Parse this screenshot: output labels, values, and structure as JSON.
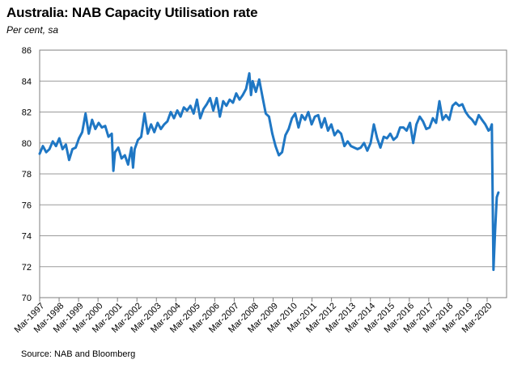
{
  "title": "Australia: NAB Capacity Utilisation rate",
  "subtitle": "Per cent, sa",
  "source": "Source: NAB and Bloomberg",
  "colors": {
    "line": "#1f77c4",
    "grid": "#9a9a9a",
    "axis": "#7f7f7f"
  },
  "chart_data": {
    "type": "line",
    "title": "Australia: NAB Capacity Utilisation rate",
    "ylabel": "Per cent, sa",
    "xlabel": "",
    "ylim": [
      70,
      86
    ],
    "yticks": [
      70,
      72,
      74,
      76,
      78,
      80,
      82,
      84,
      86
    ],
    "xlim": [
      "1997-03",
      "2020-12"
    ],
    "xtick_labels": [
      "Mar-1997",
      "Mar-1998",
      "Mar-1999",
      "Mar-2000",
      "Mar-2001",
      "Mar-2002",
      "Mar-2003",
      "Mar-2004",
      "Mar-2005",
      "Mar-2006",
      "Mar-2007",
      "Mar-2008",
      "Mar-2009",
      "Mar-2010",
      "Mar-2011",
      "Mar-2012",
      "Mar-2013",
      "Mar-2014",
      "Mar-2015",
      "Mar-2016",
      "Mar-2017",
      "Mar-2018",
      "Mar-2019",
      "Mar-2020"
    ],
    "grid": true,
    "legend": "none",
    "series": [
      {
        "points": [
          [
            "1997-03",
            79.3
          ],
          [
            "1997-05",
            79.8
          ],
          [
            "1997-07",
            79.4
          ],
          [
            "1997-09",
            79.6
          ],
          [
            "1997-11",
            80.1
          ],
          [
            "1998-01",
            79.8
          ],
          [
            "1998-03",
            80.3
          ],
          [
            "1998-05",
            79.6
          ],
          [
            "1998-07",
            79.9
          ],
          [
            "1998-09",
            78.9
          ],
          [
            "1998-11",
            79.6
          ],
          [
            "1999-01",
            79.7
          ],
          [
            "1999-03",
            80.3
          ],
          [
            "1999-05",
            80.7
          ],
          [
            "1999-07",
            81.9
          ],
          [
            "1999-09",
            80.6
          ],
          [
            "1999-11",
            81.5
          ],
          [
            "2000-01",
            80.9
          ],
          [
            "2000-03",
            81.3
          ],
          [
            "2000-05",
            81.0
          ],
          [
            "2000-07",
            81.1
          ],
          [
            "2000-09",
            80.4
          ],
          [
            "2000-11",
            80.6
          ],
          [
            "2000-12",
            78.2
          ],
          [
            "2001-01",
            79.4
          ],
          [
            "2001-03",
            79.7
          ],
          [
            "2001-05",
            79.0
          ],
          [
            "2001-07",
            79.2
          ],
          [
            "2001-09",
            78.6
          ],
          [
            "2001-11",
            79.7
          ],
          [
            "2001-12",
            78.4
          ],
          [
            "2002-01",
            79.6
          ],
          [
            "2002-03",
            80.2
          ],
          [
            "2002-05",
            80.4
          ],
          [
            "2002-07",
            81.9
          ],
          [
            "2002-09",
            80.6
          ],
          [
            "2002-11",
            81.2
          ],
          [
            "2003-01",
            80.7
          ],
          [
            "2003-03",
            81.3
          ],
          [
            "2003-05",
            80.9
          ],
          [
            "2003-07",
            81.2
          ],
          [
            "2003-09",
            81.4
          ],
          [
            "2003-11",
            82.0
          ],
          [
            "2004-01",
            81.6
          ],
          [
            "2004-03",
            82.1
          ],
          [
            "2004-05",
            81.7
          ],
          [
            "2004-07",
            82.3
          ],
          [
            "2004-09",
            82.1
          ],
          [
            "2004-11",
            82.4
          ],
          [
            "2005-01",
            81.9
          ],
          [
            "2005-03",
            82.8
          ],
          [
            "2005-05",
            81.6
          ],
          [
            "2005-07",
            82.2
          ],
          [
            "2005-09",
            82.5
          ],
          [
            "2005-11",
            82.9
          ],
          [
            "2006-01",
            82.1
          ],
          [
            "2006-03",
            82.9
          ],
          [
            "2006-05",
            81.7
          ],
          [
            "2006-07",
            82.7
          ],
          [
            "2006-09",
            82.4
          ],
          [
            "2006-11",
            82.8
          ],
          [
            "2007-01",
            82.6
          ],
          [
            "2007-03",
            83.2
          ],
          [
            "2007-05",
            82.8
          ],
          [
            "2007-07",
            83.1
          ],
          [
            "2007-09",
            83.5
          ],
          [
            "2007-11",
            84.5
          ],
          [
            "2007-12",
            83.1
          ],
          [
            "2008-01",
            84.0
          ],
          [
            "2008-03",
            83.3
          ],
          [
            "2008-05",
            84.1
          ],
          [
            "2008-07",
            83.0
          ],
          [
            "2008-09",
            81.9
          ],
          [
            "2008-11",
            81.7
          ],
          [
            "2009-01",
            80.6
          ],
          [
            "2009-03",
            79.8
          ],
          [
            "2009-05",
            79.2
          ],
          [
            "2009-07",
            79.4
          ],
          [
            "2009-09",
            80.5
          ],
          [
            "2009-11",
            80.9
          ],
          [
            "2010-01",
            81.6
          ],
          [
            "2010-03",
            81.9
          ],
          [
            "2010-05",
            81.0
          ],
          [
            "2010-07",
            81.8
          ],
          [
            "2010-09",
            81.5
          ],
          [
            "2010-11",
            82.0
          ],
          [
            "2011-01",
            81.2
          ],
          [
            "2011-03",
            81.7
          ],
          [
            "2011-05",
            81.8
          ],
          [
            "2011-07",
            81.0
          ],
          [
            "2011-09",
            81.6
          ],
          [
            "2011-11",
            80.8
          ],
          [
            "2012-01",
            81.2
          ],
          [
            "2012-03",
            80.5
          ],
          [
            "2012-05",
            80.8
          ],
          [
            "2012-07",
            80.6
          ],
          [
            "2012-09",
            79.8
          ],
          [
            "2012-11",
            80.1
          ],
          [
            "2013-01",
            79.8
          ],
          [
            "2013-03",
            79.7
          ],
          [
            "2013-05",
            79.6
          ],
          [
            "2013-07",
            79.7
          ],
          [
            "2013-09",
            80.0
          ],
          [
            "2013-11",
            79.5
          ],
          [
            "2014-01",
            80.0
          ],
          [
            "2014-03",
            81.2
          ],
          [
            "2014-05",
            80.3
          ],
          [
            "2014-07",
            79.7
          ],
          [
            "2014-09",
            80.4
          ],
          [
            "2014-11",
            80.3
          ],
          [
            "2015-01",
            80.6
          ],
          [
            "2015-03",
            80.2
          ],
          [
            "2015-05",
            80.4
          ],
          [
            "2015-07",
            81.0
          ],
          [
            "2015-09",
            81.0
          ],
          [
            "2015-11",
            80.8
          ],
          [
            "2016-01",
            81.3
          ],
          [
            "2016-03",
            80.0
          ],
          [
            "2016-05",
            81.2
          ],
          [
            "2016-07",
            81.7
          ],
          [
            "2016-09",
            81.4
          ],
          [
            "2016-11",
            80.9
          ],
          [
            "2017-01",
            81.0
          ],
          [
            "2017-03",
            81.6
          ],
          [
            "2017-05",
            81.3
          ],
          [
            "2017-07",
            82.7
          ],
          [
            "2017-09",
            81.5
          ],
          [
            "2017-11",
            81.8
          ],
          [
            "2018-01",
            81.5
          ],
          [
            "2018-03",
            82.4
          ],
          [
            "2018-05",
            82.6
          ],
          [
            "2018-07",
            82.4
          ],
          [
            "2018-09",
            82.5
          ],
          [
            "2018-11",
            82.0
          ],
          [
            "2019-01",
            81.7
          ],
          [
            "2019-03",
            81.5
          ],
          [
            "2019-05",
            81.2
          ],
          [
            "2019-07",
            81.8
          ],
          [
            "2019-09",
            81.5
          ],
          [
            "2019-11",
            81.2
          ],
          [
            "2020-01",
            80.8
          ],
          [
            "2020-02",
            80.9
          ],
          [
            "2020-03",
            81.2
          ],
          [
            "2020-04",
            71.8
          ],
          [
            "2020-05",
            74.3
          ],
          [
            "2020-06",
            76.5
          ],
          [
            "2020-07",
            76.8
          ]
        ]
      }
    ]
  }
}
